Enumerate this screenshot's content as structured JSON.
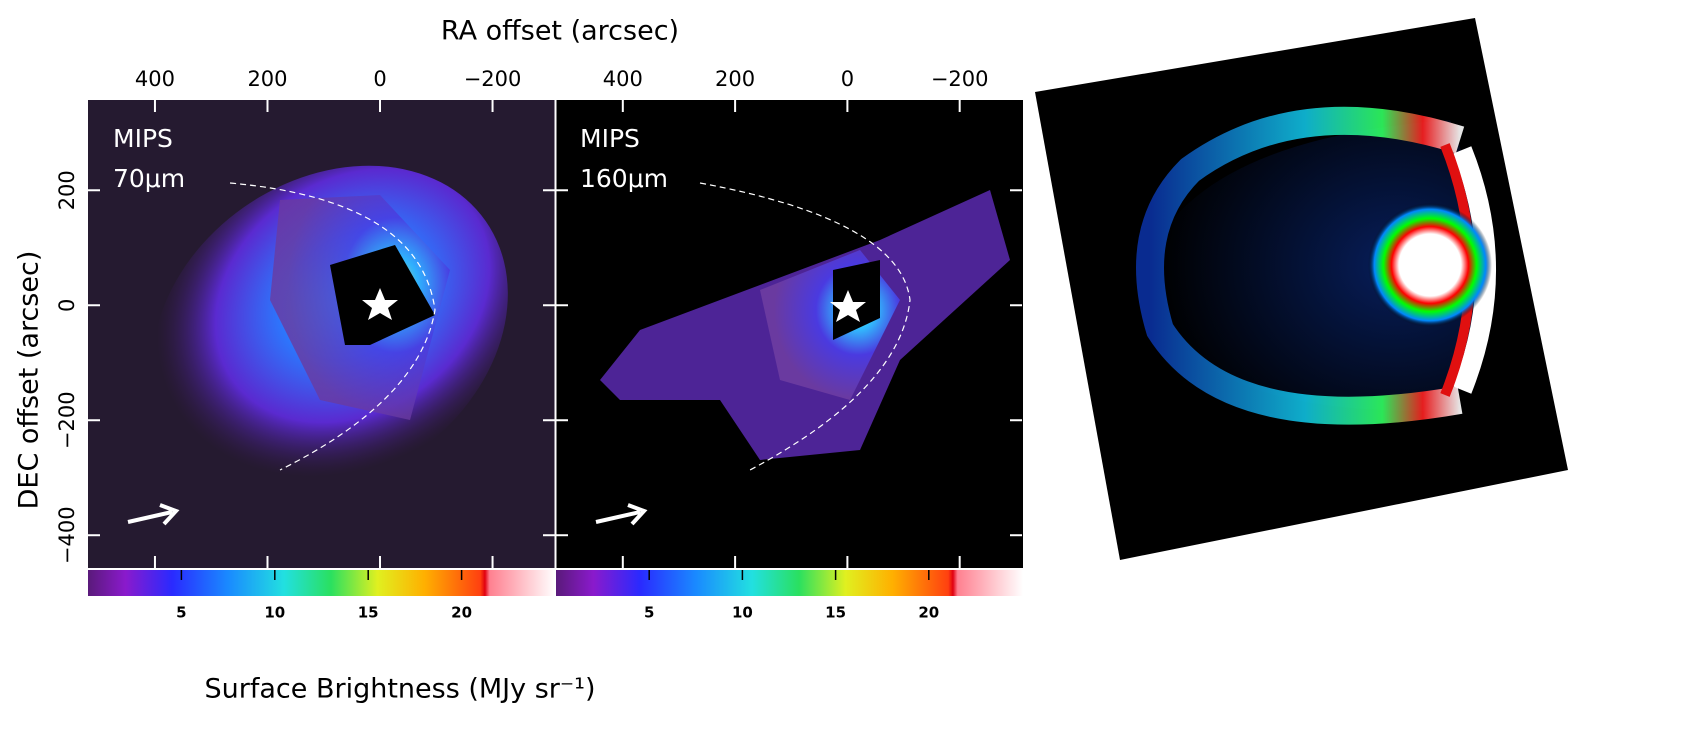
{
  "figure": {
    "top_axis_label": "RA offset (arcsec)",
    "left_axis_label": "DEC offset (arcsec)",
    "colorbar_label": "Surface Brightness (MJy sr⁻¹)",
    "ra_lim": [
      519,
      -311
    ],
    "ra_ticks": [
      400,
      200,
      0,
      {
        "value": -200,
        "label": "−200"
      }
    ],
    "dec_lim": [
      357,
      -457
    ],
    "dec_ticks": [
      200,
      0,
      {
        "value": -200,
        "label": "−200"
      },
      {
        "value": -400,
        "label": "−400"
      }
    ],
    "colorbar_lim": [
      0,
      25
    ],
    "colorbar_ticks": [
      5,
      10,
      15,
      20
    ],
    "panels": [
      {
        "instrument": "MIPS",
        "band": "70μm"
      },
      {
        "instrument": "MIPS",
        "band": "160μm"
      }
    ]
  }
}
